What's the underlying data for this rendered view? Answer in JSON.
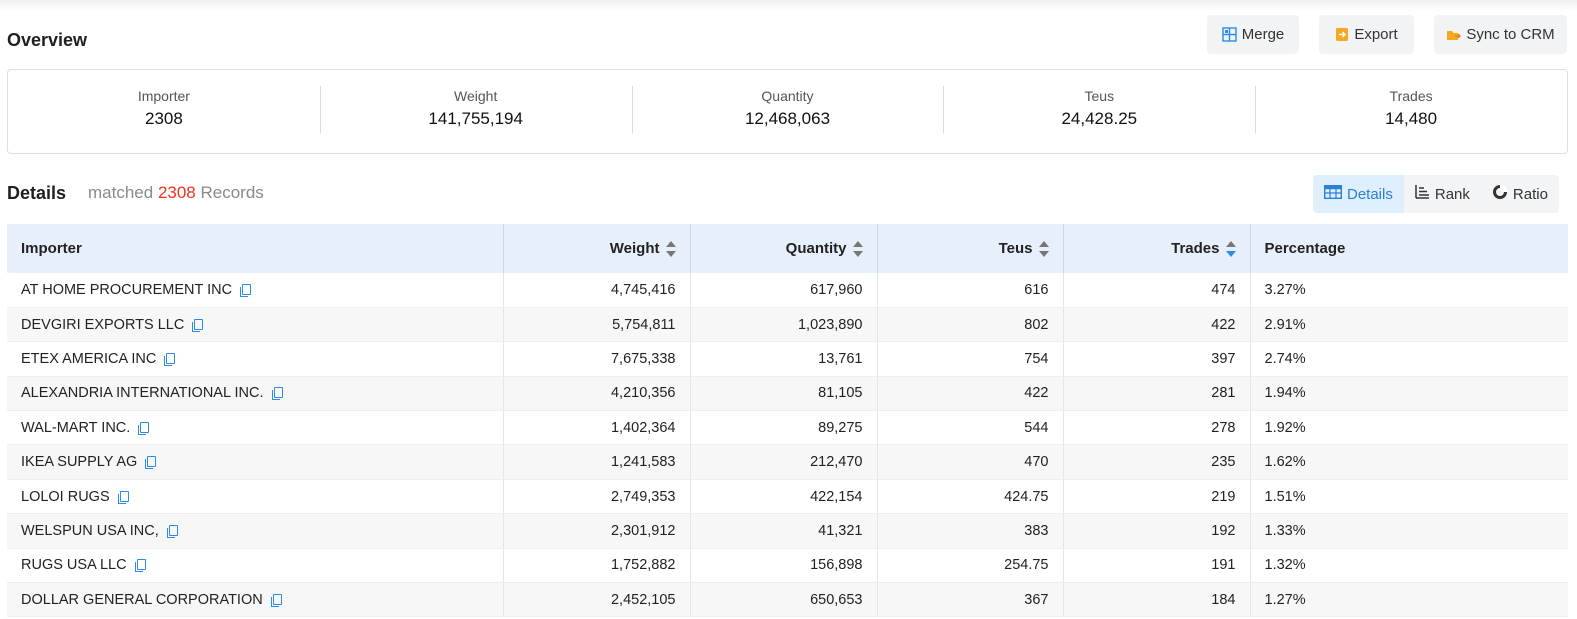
{
  "overview": {
    "title": "Overview",
    "buttons": [
      {
        "label": "Merge",
        "icon": "merge-icon"
      },
      {
        "label": "Export",
        "icon": "export-icon"
      },
      {
        "label": "Sync to CRM",
        "icon": "crm-icon"
      }
    ],
    "stats": [
      {
        "label": "Importer",
        "value": "2308"
      },
      {
        "label": "Weight",
        "value": "141,755,194"
      },
      {
        "label": "Quantity",
        "value": "12,468,063"
      },
      {
        "label": "Teus",
        "value": "24,428.25"
      },
      {
        "label": "Trades",
        "value": "14,480"
      }
    ]
  },
  "details": {
    "title": "Details",
    "matched_prefix": "matched",
    "matched_count": "2308",
    "matched_suffix": "Records",
    "views": [
      {
        "label": "Details",
        "icon": "table-icon",
        "active": true
      },
      {
        "label": "Rank",
        "icon": "rank-icon",
        "active": false
      },
      {
        "label": "Ratio",
        "icon": "pie-icon",
        "active": false
      }
    ]
  },
  "table": {
    "columns": [
      "Importer",
      "Weight",
      "Quantity",
      "Teus",
      "Trades",
      "Percentage"
    ],
    "rows": [
      {
        "importer": "AT HOME PROCUREMENT INC",
        "weight": "4,745,416",
        "quantity": "617,960",
        "teus": "616",
        "trades": "474",
        "percentage": "3.27%"
      },
      {
        "importer": "DEVGIRI EXPORTS LLC",
        "weight": "5,754,811",
        "quantity": "1,023,890",
        "teus": "802",
        "trades": "422",
        "percentage": "2.91%"
      },
      {
        "importer": "ETEX AMERICA INC",
        "weight": "7,675,338",
        "quantity": "13,761",
        "teus": "754",
        "trades": "397",
        "percentage": "2.74%"
      },
      {
        "importer": "ALEXANDRIA INTERNATIONAL INC.",
        "weight": "4,210,356",
        "quantity": "81,105",
        "teus": "422",
        "trades": "281",
        "percentage": "1.94%"
      },
      {
        "importer": "WAL-MART INC.",
        "weight": "1,402,364",
        "quantity": "89,275",
        "teus": "544",
        "trades": "278",
        "percentage": "1.92%"
      },
      {
        "importer": "IKEA SUPPLY AG",
        "weight": "1,241,583",
        "quantity": "212,470",
        "teus": "470",
        "trades": "235",
        "percentage": "1.62%"
      },
      {
        "importer": "LOLOI RUGS",
        "weight": "2,749,353",
        "quantity": "422,154",
        "teus": "424.75",
        "trades": "219",
        "percentage": "1.51%"
      },
      {
        "importer": "WELSPUN USA INC,",
        "weight": "2,301,912",
        "quantity": "41,321",
        "teus": "383",
        "trades": "192",
        "percentage": "1.33%"
      },
      {
        "importer": "RUGS USA LLC",
        "weight": "1,752,882",
        "quantity": "156,898",
        "teus": "254.75",
        "trades": "191",
        "percentage": "1.32%"
      },
      {
        "importer": "DOLLAR GENERAL CORPORATION",
        "weight": "2,452,105",
        "quantity": "650,653",
        "teus": "367",
        "trades": "184",
        "percentage": "1.27%"
      }
    ]
  },
  "colors": {
    "accent": "#2a8ce8",
    "count_red": "#f0321e",
    "header_bg": "#e8effc",
    "icon_orange": "#f5a623"
  }
}
